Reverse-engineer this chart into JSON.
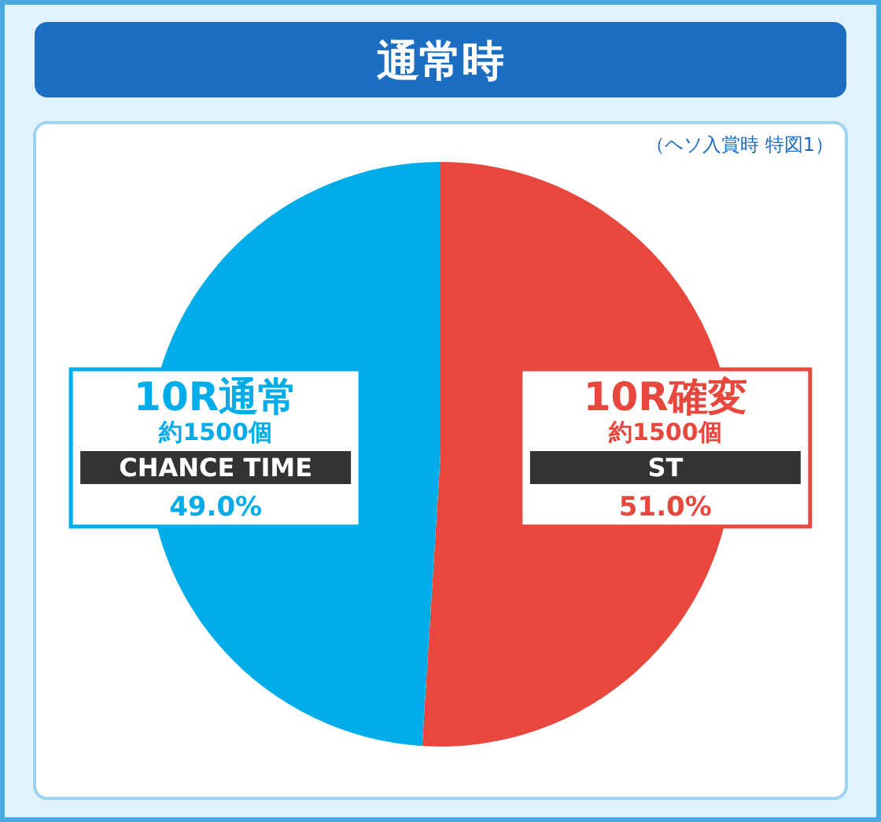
{
  "chart_data": {
    "type": "pie",
    "title": "通常時",
    "categories": [
      "10R確変",
      "10R通常"
    ],
    "values": [
      51.0,
      49.0
    ],
    "colors": [
      "#e8473e",
      "#00ade9"
    ],
    "value_labels": [
      "51.0%",
      "49.0%"
    ],
    "annotations": [
      "（ヘソ入賞時 特図1）",
      {
        "text": "約1500個",
        "x": "10R確変"
      },
      {
        "text": "ST",
        "x": "10R確変"
      },
      {
        "text": "約1500個",
        "x": "10R通常"
      },
      {
        "text": "CHANCE TIME",
        "x": "10R通常"
      }
    ]
  }
}
